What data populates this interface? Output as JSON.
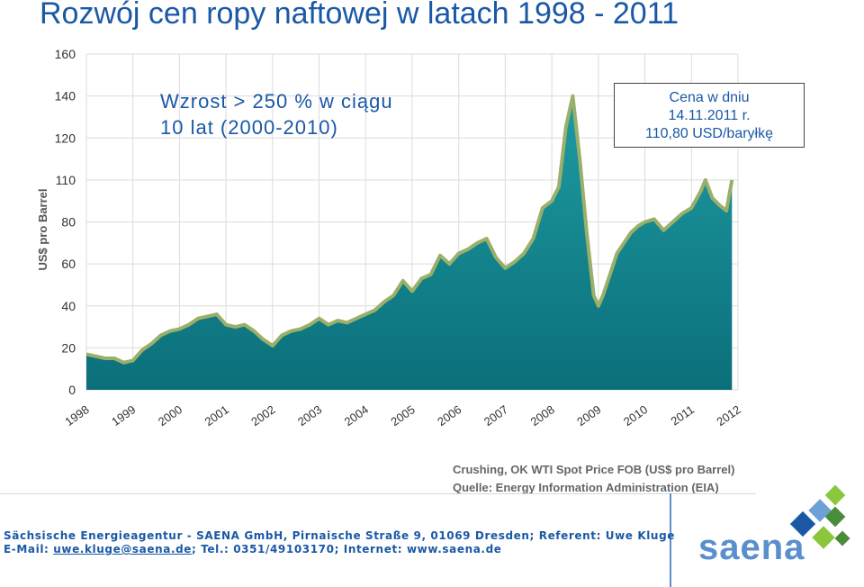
{
  "title": "Rozwój cen ropy naftowej w latach 1998 - 2011",
  "chart_data": {
    "type": "area",
    "ylabel": "US$ pro Barrel",
    "xlabel": "",
    "y_ticks": [
      0,
      20,
      40,
      60,
      80,
      110,
      120,
      140,
      160
    ],
    "x_ticks": [
      "1998",
      "1999",
      "2000",
      "2001",
      "2002",
      "2003",
      "2004",
      "2005",
      "2006",
      "2007",
      "2008",
      "2009",
      "2010",
      "2011",
      "2012"
    ],
    "xlim": [
      1998,
      2012
    ],
    "grid": true,
    "series": [
      {
        "x": [
          1998.0,
          1998.2,
          1998.4,
          1998.6,
          1998.8,
          1999.0,
          1999.2,
          1999.4,
          1999.6,
          1999.8,
          2000.0,
          2000.2,
          2000.4,
          2000.6,
          2000.8,
          2001.0,
          2001.2,
          2001.4,
          2001.6,
          2001.8,
          2002.0,
          2002.2,
          2002.4,
          2002.6,
          2002.8,
          2003.0,
          2003.2,
          2003.4,
          2003.6,
          2003.8,
          2004.0,
          2004.2,
          2004.4,
          2004.6,
          2004.8,
          2005.0,
          2005.2,
          2005.4,
          2005.6,
          2005.8,
          2006.0,
          2006.2,
          2006.4,
          2006.6,
          2006.8,
          2007.0,
          2007.2,
          2007.4,
          2007.6,
          2007.8,
          2008.0,
          2008.15,
          2008.3,
          2008.45,
          2008.6,
          2008.75,
          2008.9,
          2009.0,
          2009.1,
          2009.25,
          2009.4,
          2009.55,
          2009.7,
          2009.85,
          2010.0,
          2010.2,
          2010.4,
          2010.6,
          2010.8,
          2011.0,
          2011.2,
          2011.3,
          2011.45,
          2011.6,
          2011.75,
          2011.87
        ],
        "y": [
          17,
          16,
          15,
          15,
          13,
          14,
          19,
          22,
          26,
          28,
          29,
          31,
          34,
          35,
          36,
          31,
          30,
          31,
          28,
          24,
          21,
          26,
          28,
          29,
          31,
          34,
          31,
          33,
          32,
          34,
          36,
          38,
          42,
          45,
          52,
          47,
          53,
          55,
          64,
          60,
          65,
          67,
          70,
          72,
          63,
          58,
          61,
          65,
          72,
          90,
          95,
          105,
          125,
          140,
          115,
          75,
          45,
          40,
          45,
          55,
          65,
          70,
          75,
          78,
          80,
          82,
          76,
          80,
          86,
          90,
          102,
          110,
          97,
          92,
          88,
          110
        ]
      }
    ],
    "annotations": [
      "Wzrost > 250 % w ciągu",
      "10 lat (2000-2010)",
      "Cena w dniu",
      "14.11.2011 r.",
      "110,80 USD/baryłkę"
    ],
    "source": [
      "Crushing, OK WTI Spot Price FOB (US$ pro Barrel)",
      "Quelle: Energy Information Administration (EIA)"
    ],
    "colors": {
      "fill": "#0b7e86",
      "fill_top": "#1a9aa0",
      "outline": "#9ab06a",
      "grid": "#dcdcdc",
      "axis_text": "#333333"
    }
  },
  "footer": {
    "line1": "Sächsische Energieagentur - SAENA GmbH, Pirnaische Straße 9, 01069 Dresden; Referent: Uwe Kluge",
    "email_label": "E-Mail: ",
    "email": "uwe.kluge@saena.de",
    "line2_rest": "; Tel.: 0351/49103170; Internet: www.saena.de"
  },
  "logo": {
    "text": "saena",
    "colors": [
      "#1a58a6",
      "#6ca0d6",
      "#8cc63f",
      "#4a8c3a"
    ]
  }
}
